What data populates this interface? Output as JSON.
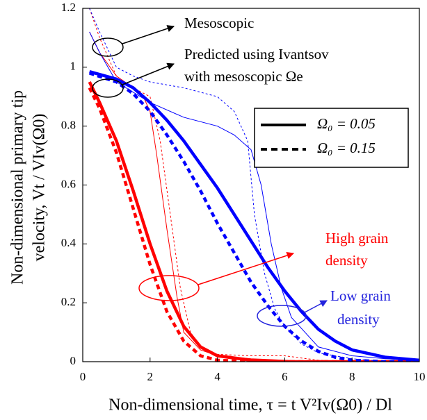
{
  "chart_data": {
    "type": "line",
    "x_label": "Non-dimensional time, τ = t V²Iv(Ω0) / Dl",
    "y_label": [
      "Non-dimensional primary tip",
      "velocity, Vt / VIv(Ω0)"
    ],
    "xlim": [
      0,
      10
    ],
    "xticks": [
      0,
      2,
      4,
      6,
      8,
      10
    ],
    "ylim": [
      0,
      1.2
    ],
    "yticks": [
      0,
      0.2,
      0.4,
      0.6,
      0.8,
      1,
      1.2
    ],
    "legend": [
      {
        "label": "Ω₀ = 0.05",
        "dash": false
      },
      {
        "label": "Ω₀ = 0.15",
        "dash": true
      }
    ],
    "annotations": {
      "mesoscopic": "Mesoscopic",
      "predicted": [
        "Predicted using Ivantsov",
        "with mesoscopic Ωe"
      ],
      "high": [
        "High grain",
        "density"
      ],
      "low": [
        "Low grain",
        "density"
      ]
    },
    "series": [
      {
        "color": "#ff0000",
        "width": 4.5,
        "dash": false,
        "x": [
          0.2,
          0.5,
          1,
          1.5,
          2,
          2.5,
          3,
          3.5,
          4,
          5,
          6,
          10
        ],
        "values": [
          0.95,
          0.88,
          0.75,
          0.58,
          0.4,
          0.24,
          0.12,
          0.05,
          0.02,
          0.005,
          0,
          0
        ]
      },
      {
        "color": "#ff0000",
        "width": 4.5,
        "dash": true,
        "x": [
          0.2,
          0.5,
          1,
          1.5,
          2,
          2.5,
          3,
          3.5,
          4,
          5,
          10
        ],
        "values": [
          0.93,
          0.86,
          0.71,
          0.52,
          0.33,
          0.17,
          0.07,
          0.02,
          0.005,
          0,
          0
        ]
      },
      {
        "color": "#ff0000",
        "width": 1,
        "dash": false,
        "x": [
          0.2,
          0.5,
          1,
          1.5,
          1.8,
          2,
          2.2,
          2.5,
          2.8,
          3,
          3.5,
          4,
          5,
          6,
          7,
          10
        ],
        "values": [
          1.12,
          1.05,
          0.97,
          0.93,
          0.9,
          0.85,
          0.7,
          0.45,
          0.22,
          0.1,
          0.04,
          0.02,
          0.01,
          0.005,
          0,
          0
        ]
      },
      {
        "color": "#ff0000",
        "width": 1,
        "dash": true,
        "x": [
          0.2,
          0.5,
          1,
          1.5,
          2,
          2.3,
          2.6,
          2.9,
          3.2,
          3.5,
          4,
          5,
          6,
          7,
          8,
          10
        ],
        "values": [
          1.2,
          1.1,
          0.97,
          0.93,
          0.9,
          0.75,
          0.5,
          0.25,
          0.1,
          0.05,
          0.025,
          0.02,
          0.02,
          0.005,
          0,
          0
        ]
      },
      {
        "color": "#0000ff",
        "width": 4.5,
        "dash": false,
        "x": [
          0.2,
          1,
          1.5,
          2,
          2.5,
          3,
          3.5,
          4,
          4.5,
          5,
          5.5,
          6,
          6.5,
          7,
          7.5,
          8,
          9,
          10
        ],
        "values": [
          0.985,
          0.96,
          0.93,
          0.88,
          0.82,
          0.75,
          0.67,
          0.59,
          0.5,
          0.41,
          0.32,
          0.24,
          0.17,
          0.11,
          0.07,
          0.04,
          0.015,
          0.005
        ]
      },
      {
        "color": "#0000ff",
        "width": 4.5,
        "dash": true,
        "x": [
          0.2,
          1,
          1.5,
          2,
          2.5,
          3,
          3.5,
          4,
          4.5,
          5,
          5.5,
          6,
          6.5,
          7,
          7.5,
          8,
          9,
          10
        ],
        "values": [
          0.98,
          0.95,
          0.91,
          0.85,
          0.77,
          0.68,
          0.58,
          0.47,
          0.37,
          0.27,
          0.19,
          0.12,
          0.07,
          0.035,
          0.015,
          0.005,
          0,
          0
        ]
      },
      {
        "color": "#0000ff",
        "width": 1,
        "dash": false,
        "x": [
          0.2,
          0.5,
          1,
          2,
          3,
          4,
          4.5,
          5,
          5.3,
          5.6,
          5.9,
          6.2,
          6.6,
          7,
          8,
          9,
          10
        ],
        "values": [
          1.12,
          1.05,
          0.95,
          0.88,
          0.83,
          0.8,
          0.77,
          0.72,
          0.6,
          0.4,
          0.25,
          0.15,
          0.1,
          0.05,
          0.02,
          0.01,
          0.005
        ]
      },
      {
        "color": "#0000ff",
        "width": 1,
        "dash": true,
        "x": [
          0.2,
          0.5,
          1,
          1.5,
          2,
          3,
          4,
          4.5,
          4.9,
          5.1,
          5.4,
          5.7,
          6,
          6.5,
          7,
          8,
          9,
          10
        ],
        "values": [
          1.2,
          1.12,
          1,
          0.97,
          0.95,
          0.93,
          0.9,
          0.85,
          0.75,
          0.5,
          0.3,
          0.18,
          0.12,
          0.06,
          0.03,
          0.01,
          0,
          0
        ]
      }
    ]
  }
}
